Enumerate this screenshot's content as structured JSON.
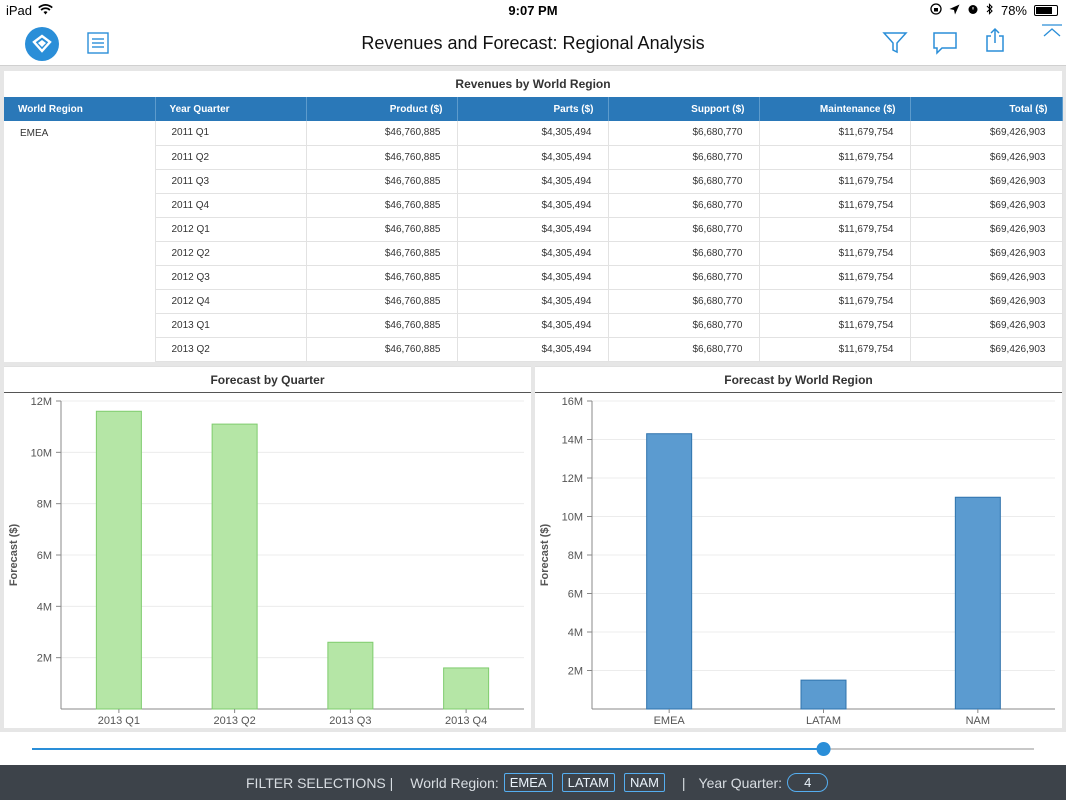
{
  "status": {
    "device": "iPad",
    "time": "9:07 PM",
    "battery": "78%",
    "battery_level": 0.78
  },
  "nav": {
    "title": "Revenues and Forecast: Regional Analysis"
  },
  "table": {
    "title": "Revenues by World Region",
    "headers": [
      "World Region",
      "Year Quarter",
      "Product ($)",
      "Parts ($)",
      "Support ($)",
      "Maintenance ($)",
      "Total ($)"
    ],
    "region": "EMEA",
    "rows": [
      [
        "2011 Q1",
        "$46,760,885",
        "$4,305,494",
        "$6,680,770",
        "$11,679,754",
        "$69,426,903"
      ],
      [
        "2011 Q2",
        "$46,760,885",
        "$4,305,494",
        "$6,680,770",
        "$11,679,754",
        "$69,426,903"
      ],
      [
        "2011 Q3",
        "$46,760,885",
        "$4,305,494",
        "$6,680,770",
        "$11,679,754",
        "$69,426,903"
      ],
      [
        "2011 Q4",
        "$46,760,885",
        "$4,305,494",
        "$6,680,770",
        "$11,679,754",
        "$69,426,903"
      ],
      [
        "2012 Q1",
        "$46,760,885",
        "$4,305,494",
        "$6,680,770",
        "$11,679,754",
        "$69,426,903"
      ],
      [
        "2012 Q2",
        "$46,760,885",
        "$4,305,494",
        "$6,680,770",
        "$11,679,754",
        "$69,426,903"
      ],
      [
        "2012 Q3",
        "$46,760,885",
        "$4,305,494",
        "$6,680,770",
        "$11,679,754",
        "$69,426,903"
      ],
      [
        "2012 Q4",
        "$46,760,885",
        "$4,305,494",
        "$6,680,770",
        "$11,679,754",
        "$69,426,903"
      ],
      [
        "2013 Q1",
        "$46,760,885",
        "$4,305,494",
        "$6,680,770",
        "$11,679,754",
        "$69,426,903"
      ],
      [
        "2013 Q2",
        "$46,760,885",
        "$4,305,494",
        "$6,680,770",
        "$11,679,754",
        "$69,426,903"
      ]
    ]
  },
  "chart_data": [
    {
      "type": "bar",
      "title": "Forecast by Quarter",
      "xlabel": "",
      "ylabel": "Forecast ($)",
      "categories": [
        "2013 Q1",
        "2013 Q2",
        "2013 Q3",
        "2013 Q4"
      ],
      "values": [
        11600000,
        11100000,
        2600000,
        1600000
      ],
      "yticks": [
        "2M",
        "4M",
        "6M",
        "8M",
        "10M",
        "12M"
      ],
      "ylim": [
        0,
        12000000
      ],
      "color": "#b5e6a6",
      "stroke": "#7fcc6e",
      "grid": true
    },
    {
      "type": "bar",
      "title": "Forecast by World Region",
      "xlabel": "",
      "ylabel": "Forecast ($)",
      "categories": [
        "EMEA",
        "LATAM",
        "NAM"
      ],
      "values": [
        14300000,
        1500000,
        11000000
      ],
      "yticks": [
        "2M",
        "4M",
        "6M",
        "8M",
        "10M",
        "12M",
        "14M",
        "16M"
      ],
      "ylim": [
        0,
        16000000
      ],
      "color": "#5b9bd0",
      "stroke": "#2f73ad",
      "grid": true
    }
  ],
  "slider": {
    "value": 0.79
  },
  "filters": {
    "label": "FILTER SELECTIONS |",
    "region_label": "World Region:",
    "regions": [
      "EMEA",
      "LATAM",
      "NAM"
    ],
    "separator": "|",
    "quarter_label": "Year Quarter:",
    "quarter_value": "4"
  }
}
